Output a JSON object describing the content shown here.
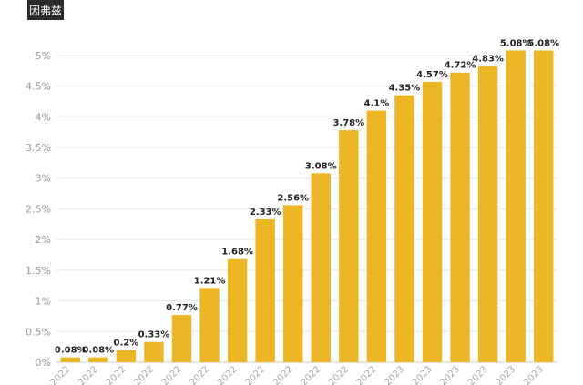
{
  "header": {
    "badge_text": "因弗兹"
  },
  "chart_data": {
    "type": "bar",
    "title": "",
    "xlabel": "",
    "ylabel": "",
    "categories": [
      "2022",
      "2022",
      "2022",
      "2022",
      "2022",
      "2022",
      "2022",
      "2022",
      "2022",
      "2022",
      "2022",
      "2022",
      "2023",
      "2023",
      "2023",
      "2023",
      "2023",
      "2023"
    ],
    "values": [
      0.08,
      0.08,
      0.2,
      0.33,
      0.77,
      1.21,
      1.68,
      2.33,
      2.56,
      3.08,
      3.78,
      4.1,
      4.35,
      4.57,
      4.72,
      4.83,
      5.08,
      5.08
    ],
    "data_labels": [
      "0.08%",
      "0.08%",
      "0.2%",
      "0.33%",
      "0.77%",
      "1.21%",
      "1.68%",
      "2.33%",
      "2.56%",
      "3.08%",
      "3.78%",
      "4.1%",
      "4.35%",
      "4.57%",
      "4.72%",
      "4.83%",
      "5.08%",
      "5.08%"
    ],
    "ylim": [
      0,
      5.25
    ],
    "yticks": [
      0,
      0.5,
      1,
      1.5,
      2,
      2.5,
      3,
      3.5,
      4,
      4.5,
      5
    ],
    "ytick_labels": [
      "0%",
      "0.5%",
      "1%",
      "1.5%",
      "2%",
      "2.5%",
      "3%",
      "3.5%",
      "4%",
      "4.5%",
      "5%"
    ],
    "grid": true,
    "bar_color": "#EDB624"
  }
}
